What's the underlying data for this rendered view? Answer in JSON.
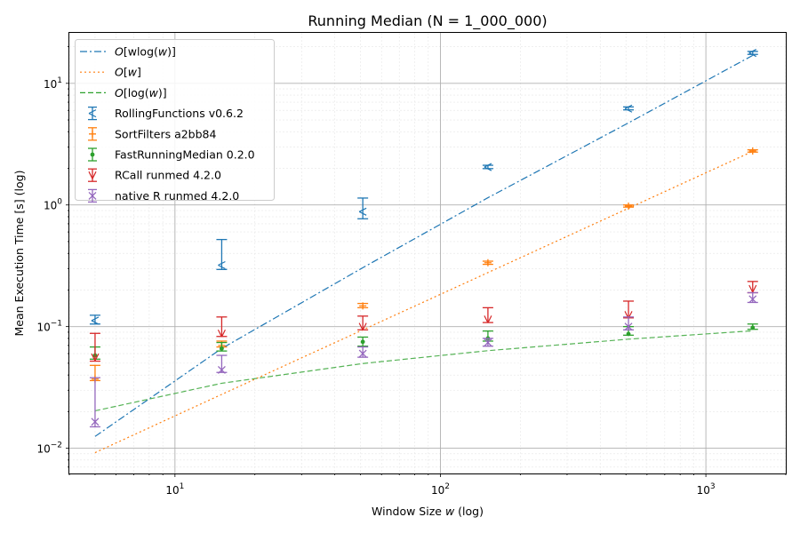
{
  "chart_data": {
    "type": "scatter",
    "title": "Running Median (N = 1_000_000)",
    "xlabel_prefix": "Window Size ",
    "xlabel_var": "w",
    "xlabel_suffix": " (log)",
    "ylabel": "Mean Execution Time [s] (log)",
    "xscale": "log",
    "yscale": "log",
    "xlim": [
      4,
      2000
    ],
    "ylim": [
      0.0062,
      26
    ],
    "grid": true,
    "legend_position": "top-left",
    "x_ticks": [
      {
        "value": 10,
        "base": "10",
        "exp": "1"
      },
      {
        "value": 100,
        "base": "10",
        "exp": "2"
      },
      {
        "value": 1000,
        "base": "10",
        "exp": "3"
      }
    ],
    "y_ticks": [
      {
        "value": 0.01,
        "base": "10",
        "exp": "−2"
      },
      {
        "value": 0.1,
        "base": "10",
        "exp": "−1"
      },
      {
        "value": 1,
        "base": "10",
        "exp": "0"
      },
      {
        "value": 10,
        "base": "10",
        "exp": "1"
      }
    ],
    "x_values": [
      5,
      15,
      51,
      151,
      511,
      1501
    ],
    "fits": [
      {
        "name": "O[wlog(w)]",
        "label_pre": "O",
        "label_mid": "[wlog(",
        "label_var": "w",
        "label_post": ")]",
        "color": "#1f77b4",
        "dash": "8,3,2,3",
        "values": [
          0.0125,
          0.0661,
          0.305,
          1.147,
          4.73,
          16.97
        ]
      },
      {
        "name": "O[w]",
        "label_pre": "O",
        "label_mid": "[",
        "label_var": "w",
        "label_post": "]",
        "color": "#ff7f0e",
        "dash": "2,3",
        "values": [
          0.0092,
          0.0277,
          0.094,
          0.278,
          0.94,
          2.76
        ]
      },
      {
        "name": "O[log(w)]",
        "label_pre": "O",
        "label_mid": "[log(",
        "label_var": "w",
        "label_post": ")]",
        "color": "#2ca02c",
        "dash": "6,3",
        "values": [
          0.0203,
          0.0342,
          0.0497,
          0.0634,
          0.0788,
          0.0924
        ]
      }
    ],
    "series": [
      {
        "name": "RollingFunctions v0.6.2",
        "color": "#1f77b4",
        "marker": "tri_left",
        "values": [
          0.112,
          0.32,
          0.88,
          2.05,
          6.2,
          17.8
        ],
        "err_low": [
          0.105,
          0.295,
          0.77,
          1.99,
          6.05,
          17.3
        ],
        "err_high": [
          0.124,
          0.52,
          1.14,
          2.12,
          6.4,
          18.3
        ]
      },
      {
        "name": "SortFilters a2bb84",
        "color": "#ff7f0e",
        "marker": "plus",
        "values": [
          0.037,
          0.07,
          0.148,
          0.335,
          0.98,
          2.78
        ],
        "err_low": [
          0.036,
          0.068,
          0.143,
          0.325,
          0.96,
          2.72
        ],
        "err_high": [
          0.048,
          0.076,
          0.155,
          0.345,
          1.0,
          2.84
        ]
      },
      {
        "name": "FastRunningMedian 0.2.0",
        "color": "#2ca02c",
        "marker": "dot",
        "values": [
          0.058,
          0.066,
          0.075,
          0.08,
          0.087,
          0.098
        ],
        "err_low": [
          0.054,
          0.063,
          0.069,
          0.076,
          0.085,
          0.095
        ],
        "err_high": [
          0.068,
          0.074,
          0.082,
          0.092,
          0.1,
          0.105
        ]
      },
      {
        "name": "RCall runmed 4.2.0",
        "color": "#d62728",
        "marker": "tri_down",
        "values": [
          0.056,
          0.088,
          0.1,
          0.115,
          0.125,
          0.205
        ],
        "err_low": [
          0.052,
          0.083,
          0.094,
          0.108,
          0.118,
          0.19
        ],
        "err_high": [
          0.088,
          0.12,
          0.122,
          0.143,
          0.162,
          0.235
        ]
      },
      {
        "name": "native R runmed 4.2.0",
        "color": "#9467bd",
        "marker": "x",
        "values": [
          0.0165,
          0.044,
          0.06,
          0.074,
          0.1,
          0.168
        ],
        "err_low": [
          0.015,
          0.042,
          0.056,
          0.069,
          0.094,
          0.158
        ],
        "err_high": [
          0.038,
          0.058,
          0.068,
          0.08,
          0.12,
          0.19
        ]
      }
    ]
  }
}
